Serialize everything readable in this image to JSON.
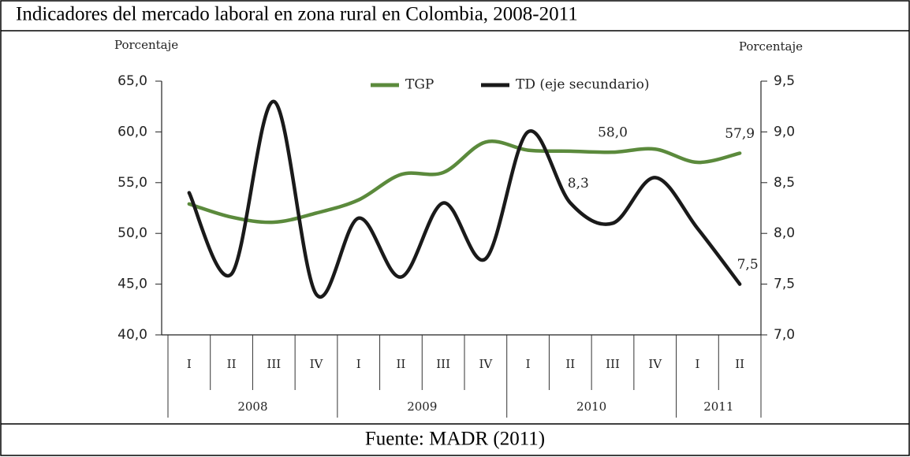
{
  "chart_data": {
    "type": "line",
    "title": "Indicadores del mercado laboral en zona rural en Colombia, 2008-2011",
    "source": "Fuente: MADR (2011)",
    "ylabel": "Porcentaje",
    "y2label": "Porcentaje",
    "categories": [
      "I",
      "II",
      "III",
      "IV",
      "I",
      "II",
      "III",
      "IV",
      "I",
      "II",
      "III",
      "IV",
      "I",
      "II"
    ],
    "years": [
      "2008",
      "2009",
      "2010",
      "2011"
    ],
    "series": [
      {
        "name": "TGP",
        "color": "#5b8a3c",
        "axis": "y",
        "values": [
          52.9,
          51.6,
          51.1,
          52.0,
          53.3,
          55.8,
          56.0,
          59.0,
          58.2,
          58.1,
          58.0,
          58.3,
          57.0,
          57.9
        ],
        "value_labels": [
          null,
          null,
          null,
          null,
          null,
          null,
          null,
          null,
          null,
          null,
          "58,0",
          null,
          null,
          "57,9"
        ]
      },
      {
        "name": "TD (eje secundario)",
        "color": "#1a1a1a",
        "axis": "y2",
        "values": [
          8.4,
          7.6,
          9.3,
          7.4,
          8.15,
          7.57,
          8.3,
          7.75,
          9.0,
          8.3,
          8.1,
          8.55,
          8.05,
          7.5
        ],
        "value_labels": [
          null,
          null,
          null,
          null,
          null,
          null,
          null,
          null,
          null,
          "8,3",
          null,
          null,
          null,
          "7,5"
        ]
      }
    ],
    "ylim": [
      40,
      65
    ],
    "yticks": [
      {
        "value": 40,
        "label": "40,0"
      },
      {
        "value": 45,
        "label": "45,0"
      },
      {
        "value": 50,
        "label": "50,0"
      },
      {
        "value": 55,
        "label": "55,0"
      },
      {
        "value": 60,
        "label": "60,0"
      },
      {
        "value": 65,
        "label": "65,0"
      }
    ],
    "y2lim": [
      7,
      9.5
    ],
    "y2ticks": [
      {
        "value": 7,
        "label": "7,0"
      },
      {
        "value": 7.5,
        "label": "7,5"
      },
      {
        "value": 8,
        "label": "8,0"
      },
      {
        "value": 8.5,
        "label": "8,5"
      },
      {
        "value": 9,
        "label": "9,0"
      },
      {
        "value": 9.5,
        "label": "9,5"
      }
    ],
    "legend": "top"
  }
}
